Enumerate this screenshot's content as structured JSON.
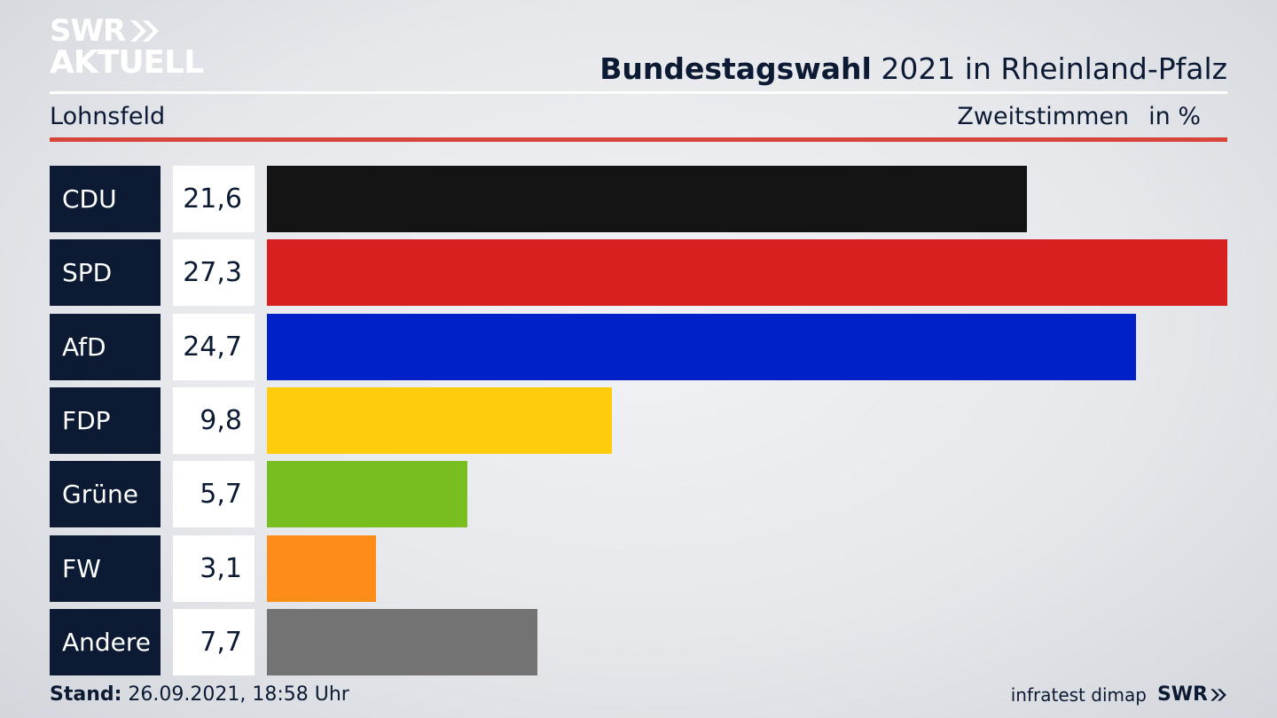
{
  "logo": {
    "line1": "SWR",
    "line2": "AKTUELL"
  },
  "header": {
    "title_bold": "Bundestagswahl",
    "title_rest": " 2021 in Rheinland-Pfalz",
    "location": "Lohnsfeld",
    "vote_type": "Zweitstimmen",
    "unit": "in %"
  },
  "chart_data": {
    "type": "bar",
    "orientation": "horizontal",
    "title": "Bundestagswahl 2021 in Rheinland-Pfalz",
    "categories": [
      "CDU",
      "SPD",
      "AfD",
      "FDP",
      "Grüne",
      "FW",
      "Andere"
    ],
    "values": [
      21.6,
      27.3,
      24.7,
      9.8,
      5.7,
      3.1,
      7.7
    ],
    "value_labels": [
      "21,6",
      "27,3",
      "24,7",
      "9,8",
      "5,7",
      "3,1",
      "7,7"
    ],
    "colors": [
      "#141414",
      "#d92020",
      "#0020c8",
      "#fecc0a",
      "#78be1e",
      "#fe8c19",
      "#737373"
    ],
    "xlim": [
      0,
      27.3
    ],
    "grid": false
  },
  "footer": {
    "stand_label": "Stand:",
    "stand_value": " 26.09.2021, 18:58 Uhr",
    "source": "infratest dimap",
    "brand": "SWR"
  }
}
